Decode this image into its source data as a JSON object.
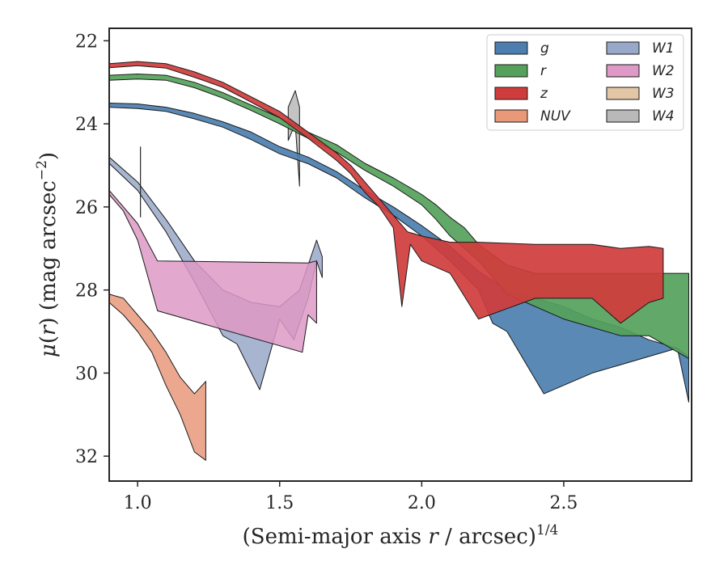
{
  "chart_data": {
    "type": "area",
    "title": "",
    "xlabel_main": "(Semi-major axis ",
    "xlabel_r": "r",
    "xlabel_unit": " / arcsec)",
    "xlabel_sup": "1/4",
    "ylabel_mu": "μ",
    "ylabel_open": "(",
    "ylabel_r": "r",
    "ylabel_close": ") (mag arcsec",
    "ylabel_sup": "−2",
    "ylabel_end": ")",
    "xlim": [
      0.9,
      2.95
    ],
    "ylim": [
      32.6,
      21.7
    ],
    "y_inverted": true,
    "grid": false,
    "legend_position": "top-right",
    "xticks": [
      {
        "v": 1.0,
        "label": "1.0"
      },
      {
        "v": 1.5,
        "label": "1.5"
      },
      {
        "v": 2.0,
        "label": "2.0"
      },
      {
        "v": 2.5,
        "label": "2.5"
      }
    ],
    "yticks": [
      {
        "v": 22,
        "label": "22"
      },
      {
        "v": 24,
        "label": "24"
      },
      {
        "v": 26,
        "label": "26"
      },
      {
        "v": 28,
        "label": "28"
      },
      {
        "v": 30,
        "label": "30"
      },
      {
        "v": 32,
        "label": "32"
      }
    ],
    "series": [
      {
        "name": "g",
        "color": "#4c7fb0",
        "upper": [
          [
            0.9,
            23.5
          ],
          [
            1.0,
            23.52
          ],
          [
            1.1,
            23.6
          ],
          [
            1.2,
            23.75
          ],
          [
            1.3,
            23.95
          ],
          [
            1.4,
            24.2
          ],
          [
            1.5,
            24.55
          ],
          [
            1.6,
            24.8
          ],
          [
            1.7,
            25.15
          ],
          [
            1.8,
            25.6
          ],
          [
            1.9,
            26.0
          ],
          [
            2.0,
            26.45
          ],
          [
            2.1,
            26.95
          ],
          [
            2.15,
            27.25
          ],
          [
            2.2,
            27.55
          ],
          [
            2.3,
            28.0
          ],
          [
            2.4,
            28.2
          ],
          [
            2.5,
            28.4
          ],
          [
            2.6,
            28.7
          ],
          [
            2.7,
            28.9
          ],
          [
            2.8,
            29.2
          ],
          [
            2.9,
            29.4
          ],
          [
            2.94,
            29.6
          ]
        ],
        "lower": [
          [
            0.9,
            23.6
          ],
          [
            1.0,
            23.63
          ],
          [
            1.1,
            23.7
          ],
          [
            1.2,
            23.88
          ],
          [
            1.3,
            24.08
          ],
          [
            1.4,
            24.38
          ],
          [
            1.5,
            24.72
          ],
          [
            1.6,
            24.96
          ],
          [
            1.7,
            25.3
          ],
          [
            1.8,
            25.78
          ],
          [
            1.9,
            26.2
          ],
          [
            2.0,
            26.7
          ],
          [
            2.1,
            27.3
          ],
          [
            2.2,
            28.0
          ],
          [
            2.25,
            28.8
          ],
          [
            2.3,
            29.0
          ],
          [
            2.43,
            30.5
          ],
          [
            2.6,
            30.0
          ],
          [
            2.8,
            29.6
          ],
          [
            2.9,
            29.4
          ],
          [
            2.94,
            30.7
          ]
        ]
      },
      {
        "name": "r",
        "color": "#55a15b",
        "upper": [
          [
            0.9,
            22.83
          ],
          [
            1.0,
            22.8
          ],
          [
            1.1,
            22.83
          ],
          [
            1.2,
            23.0
          ],
          [
            1.3,
            23.25
          ],
          [
            1.4,
            23.55
          ],
          [
            1.5,
            23.85
          ],
          [
            1.6,
            24.2
          ],
          [
            1.7,
            24.5
          ],
          [
            1.8,
            24.95
          ],
          [
            1.9,
            25.3
          ],
          [
            2.0,
            25.7
          ],
          [
            2.05,
            25.95
          ],
          [
            2.1,
            26.25
          ],
          [
            2.15,
            26.5
          ],
          [
            2.2,
            26.9
          ],
          [
            2.3,
            27.4
          ],
          [
            2.4,
            27.6
          ],
          [
            2.6,
            27.6
          ],
          [
            2.8,
            27.6
          ],
          [
            2.94,
            27.6
          ]
        ],
        "lower": [
          [
            0.9,
            22.95
          ],
          [
            1.0,
            22.92
          ],
          [
            1.1,
            22.95
          ],
          [
            1.2,
            23.13
          ],
          [
            1.3,
            23.38
          ],
          [
            1.4,
            23.68
          ],
          [
            1.5,
            24.0
          ],
          [
            1.6,
            24.35
          ],
          [
            1.7,
            24.68
          ],
          [
            1.8,
            25.12
          ],
          [
            1.9,
            25.5
          ],
          [
            2.0,
            25.95
          ],
          [
            2.05,
            26.3
          ],
          [
            2.1,
            26.7
          ],
          [
            2.15,
            27.0
          ],
          [
            2.2,
            27.3
          ],
          [
            2.3,
            28.1
          ],
          [
            2.5,
            28.7
          ],
          [
            2.7,
            29.1
          ],
          [
            2.8,
            29.1
          ],
          [
            2.94,
            29.65
          ]
        ]
      },
      {
        "name": "z",
        "color": "#d03c3c",
        "upper": [
          [
            0.9,
            22.55
          ],
          [
            1.0,
            22.5
          ],
          [
            1.1,
            22.55
          ],
          [
            1.2,
            22.75
          ],
          [
            1.3,
            23.0
          ],
          [
            1.4,
            23.35
          ],
          [
            1.5,
            23.7
          ],
          [
            1.6,
            24.2
          ],
          [
            1.7,
            24.7
          ],
          [
            1.75,
            25.0
          ],
          [
            1.8,
            25.4
          ],
          [
            1.85,
            25.8
          ],
          [
            1.9,
            26.2
          ],
          [
            1.95,
            26.6
          ],
          [
            2.0,
            26.7
          ],
          [
            2.1,
            26.85
          ],
          [
            2.2,
            26.85
          ],
          [
            2.4,
            26.9
          ],
          [
            2.6,
            26.9
          ],
          [
            2.7,
            27.0
          ],
          [
            2.8,
            26.95
          ],
          [
            2.85,
            27.0
          ]
        ],
        "lower": [
          [
            0.9,
            22.65
          ],
          [
            1.0,
            22.6
          ],
          [
            1.1,
            22.66
          ],
          [
            1.2,
            22.88
          ],
          [
            1.3,
            23.12
          ],
          [
            1.4,
            23.48
          ],
          [
            1.5,
            23.85
          ],
          [
            1.6,
            24.35
          ],
          [
            1.7,
            24.88
          ],
          [
            1.75,
            25.2
          ],
          [
            1.8,
            25.65
          ],
          [
            1.85,
            26.0
          ],
          [
            1.9,
            26.5
          ],
          [
            1.93,
            28.4
          ],
          [
            1.96,
            26.9
          ],
          [
            2.0,
            27.3
          ],
          [
            2.1,
            27.6
          ],
          [
            2.2,
            28.7
          ],
          [
            2.4,
            28.2
          ],
          [
            2.6,
            28.2
          ],
          [
            2.7,
            28.8
          ],
          [
            2.8,
            28.3
          ],
          [
            2.85,
            28.2
          ]
        ]
      },
      {
        "name": "NUV",
        "color": "#e9997a",
        "upper": [
          [
            0.9,
            28.1
          ],
          [
            0.95,
            28.2
          ],
          [
            1.0,
            28.6
          ],
          [
            1.05,
            29.0
          ],
          [
            1.1,
            29.5
          ],
          [
            1.15,
            30.1
          ],
          [
            1.2,
            30.5
          ],
          [
            1.24,
            30.2
          ]
        ],
        "lower": [
          [
            0.9,
            28.3
          ],
          [
            0.95,
            28.6
          ],
          [
            1.0,
            29.0
          ],
          [
            1.05,
            29.5
          ],
          [
            1.1,
            30.3
          ],
          [
            1.15,
            31.0
          ],
          [
            1.2,
            31.9
          ],
          [
            1.24,
            32.1
          ]
        ]
      },
      {
        "name": "W1",
        "color": "#98a8c8",
        "upper": [
          [
            0.9,
            24.8
          ],
          [
            1.0,
            25.4
          ],
          [
            1.1,
            26.3
          ],
          [
            1.2,
            27.3
          ],
          [
            1.3,
            28.0
          ],
          [
            1.4,
            28.3
          ],
          [
            1.5,
            28.4
          ],
          [
            1.57,
            28.0
          ],
          [
            1.6,
            27.4
          ],
          [
            1.63,
            26.8
          ],
          [
            1.65,
            27.2
          ]
        ],
        "lower": [
          [
            0.9,
            24.95
          ],
          [
            1.0,
            25.6
          ],
          [
            1.1,
            26.6
          ],
          [
            1.2,
            27.8
          ],
          [
            1.3,
            29.1
          ],
          [
            1.35,
            29.3
          ],
          [
            1.43,
            30.4
          ],
          [
            1.5,
            28.7
          ],
          [
            1.55,
            29.2
          ],
          [
            1.6,
            28.2
          ],
          [
            1.63,
            27.3
          ],
          [
            1.65,
            27.7
          ]
        ]
      },
      {
        "name": "W2",
        "color": "#de99c6",
        "upper": [
          [
            0.9,
            25.6
          ],
          [
            0.95,
            26.0
          ],
          [
            1.0,
            26.4
          ],
          [
            1.07,
            27.3
          ],
          [
            1.6,
            27.35
          ],
          [
            1.63,
            27.3
          ]
        ],
        "lower": [
          [
            0.9,
            25.7
          ],
          [
            0.95,
            26.1
          ],
          [
            1.0,
            26.8
          ],
          [
            1.07,
            28.5
          ],
          [
            1.58,
            29.5
          ],
          [
            1.6,
            28.6
          ],
          [
            1.63,
            28.8
          ]
        ]
      },
      {
        "name": "W3",
        "color": "#e2c6a6",
        "upper": [],
        "lower": []
      },
      {
        "name": "W4",
        "color": "#b9b9b9",
        "upper": [
          [
            1.53,
            23.6
          ],
          [
            1.555,
            23.2
          ],
          [
            1.57,
            23.6
          ]
        ],
        "lower": [
          [
            1.53,
            24.4
          ],
          [
            1.555,
            24.0
          ],
          [
            1.57,
            25.5
          ]
        ]
      }
    ],
    "error_bars": [
      {
        "x": 1.01,
        "y_low": 24.55,
        "y_high": 26.25
      }
    ]
  }
}
